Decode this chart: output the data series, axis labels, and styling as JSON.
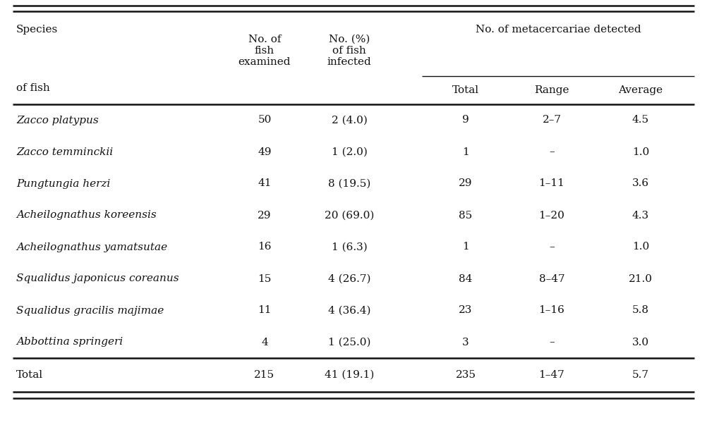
{
  "rows": [
    [
      "Zacco platypus",
      "50",
      "2 (4.0)",
      "9",
      "2–7",
      "4.5"
    ],
    [
      "Zacco temminckii",
      "49",
      "1 (2.0)",
      "1",
      "–",
      "1.0"
    ],
    [
      "Pungtungia herzi",
      "41",
      "8 (19.5)",
      "29",
      "1–11",
      "3.6"
    ],
    [
      "Acheilognathus koreensis",
      "29",
      "20 (69.0)",
      "85",
      "1–20",
      "4.3"
    ],
    [
      "Acheilognathus yamatsutae",
      "16",
      "1 (6.3)",
      "1",
      "–",
      "1.0"
    ],
    [
      "Squalidus japonicus coreanus",
      "15",
      "4 (26.7)",
      "84",
      "8–47",
      "21.0"
    ],
    [
      "Squalidus gracilis majimae",
      "11",
      "4 (36.4)",
      "23",
      "1–16",
      "5.8"
    ],
    [
      "Abbottina springeri",
      "4",
      "1 (25.0)",
      "3",
      "–",
      "3.0"
    ]
  ],
  "total_row": [
    "Total",
    "215",
    "41 (19.1)",
    "235",
    "1–47",
    "5.7"
  ],
  "bg_color": "#ffffff",
  "text_color": "#111111",
  "line_color": "#111111",
  "font_size": 11.0,
  "font_family": "serif"
}
